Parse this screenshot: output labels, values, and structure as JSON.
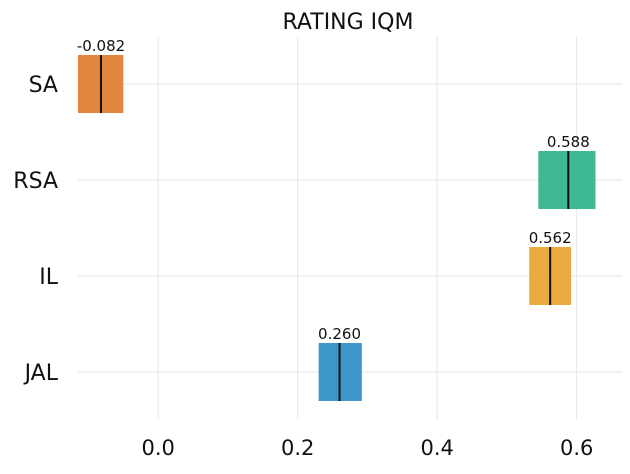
{
  "chart_data": {
    "type": "bar",
    "title": "RATING IQM",
    "xlabel": "",
    "ylabel": "",
    "orientation": "horizontal-intervals",
    "categories": [
      "SA",
      "RSA",
      "IL",
      "JAL"
    ],
    "values": [
      -0.082,
      0.588,
      0.562,
      0.26
    ],
    "value_labels": [
      "-0.082",
      "0.588",
      "0.562",
      "0.260"
    ],
    "ci_low": [
      -0.115,
      0.545,
      0.532,
      0.23
    ],
    "ci_high": [
      -0.05,
      0.627,
      0.592,
      0.292
    ],
    "colors": [
      "#e07b2e",
      "#2eb38a",
      "#e8a32f",
      "#2e8ec4"
    ],
    "xlim": [
      -0.115,
      0.665
    ],
    "xticks": [
      0.0,
      0.2,
      0.4,
      0.6
    ],
    "xtick_labels": [
      "0.0",
      "0.2",
      "0.4",
      "0.6"
    ],
    "grid": true
  }
}
